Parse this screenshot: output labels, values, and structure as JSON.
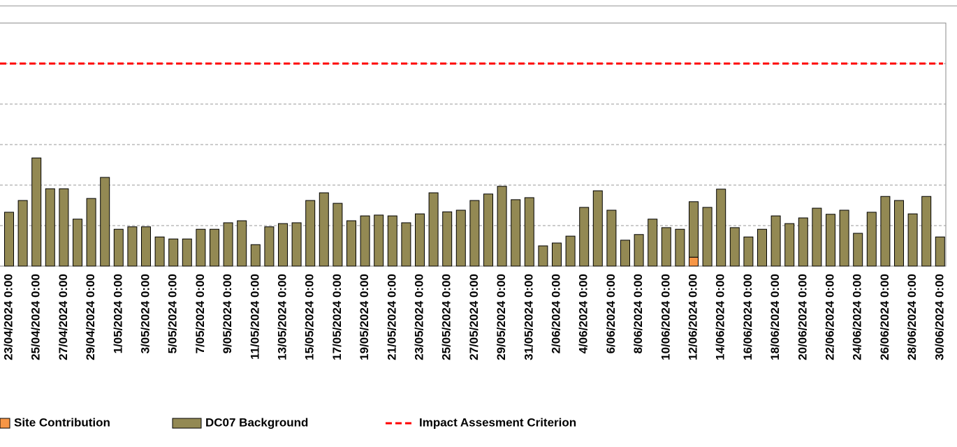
{
  "chart_data": {
    "type": "bar",
    "stacked": true,
    "categories": [
      "23/04/2024 0:00",
      null,
      "25/04/2024 0:00",
      null,
      "27/04/2024 0:00",
      null,
      "29/04/2024 0:00",
      null,
      "1/05/2024 0:00",
      null,
      "3/05/2024 0:00",
      null,
      "5/05/2024 0:00",
      null,
      "7/05/2024 0:00",
      null,
      "9/05/2024 0:00",
      null,
      "11/05/2024 0:00",
      null,
      "13/05/2024 0:00",
      null,
      "15/05/2024 0:00",
      null,
      "17/05/2024 0:00",
      null,
      "19/05/2024 0:00",
      null,
      "21/05/2024 0:00",
      null,
      "23/05/2024 0:00",
      null,
      "25/05/2024 0:00",
      null,
      "27/05/2024 0:00",
      null,
      "29/05/2024 0:00",
      null,
      "31/05/2024 0:00",
      null,
      "2/06/2024 0:00",
      null,
      "4/06/2024 0:00",
      null,
      "6/06/2024 0:00",
      null,
      "8/06/2024 0:00",
      null,
      "10/06/2024 0:00",
      null,
      "12/06/2024 0:00",
      null,
      "14/06/2024 0:00",
      null,
      "16/06/2024 0:00",
      null,
      "18/06/2024 0:00",
      null,
      "20/06/2024 0:00",
      null,
      "22/06/2024 0:00",
      null,
      "24/06/2024 0:00",
      null,
      "26/06/2024 0:00",
      null,
      "28/06/2024 0:00",
      null,
      "30/06/2024 0:00"
    ],
    "series": [
      {
        "name": "Site Contribution",
        "color": "#f79646",
        "values": [
          0,
          0,
          0,
          0,
          0,
          0,
          0,
          0,
          0,
          0,
          0,
          0,
          0,
          0,
          0,
          0,
          0,
          0,
          0,
          0,
          0,
          0,
          0,
          0,
          0,
          0,
          0,
          0,
          0,
          0,
          0,
          0,
          0,
          0,
          0,
          0,
          0,
          0,
          0,
          0,
          0,
          0,
          0,
          0,
          0,
          0,
          0,
          0,
          0,
          0,
          2.2,
          0,
          0,
          0,
          0,
          0,
          0,
          0,
          0,
          0,
          0,
          0,
          0,
          0,
          0,
          0,
          0,
          0,
          0
        ]
      },
      {
        "name": "DC07 Background",
        "color": "#938953",
        "values": [
          13.3,
          16.2,
          26.7,
          19.1,
          19.1,
          11.6,
          16.7,
          21.9,
          9.1,
          9.7,
          9.7,
          7.2,
          6.7,
          6.7,
          9.1,
          9.1,
          10.7,
          11.2,
          5.3,
          9.7,
          10.5,
          10.7,
          16.2,
          18.1,
          15.5,
          11.2,
          12.4,
          12.6,
          12.4,
          10.7,
          12.9,
          18.1,
          13.4,
          13.8,
          16.2,
          17.8,
          19.7,
          16.4,
          16.9,
          5.0,
          5.7,
          7.4,
          14.5,
          18.6,
          13.8,
          6.4,
          7.8,
          11.6,
          9.5,
          9.1,
          13.7,
          14.5,
          19.0,
          9.5,
          7.2,
          9.1,
          12.4,
          10.5,
          11.9,
          14.3,
          12.8,
          13.8,
          8.1,
          13.3,
          17.2,
          16.2,
          12.9,
          17.2,
          7.2
        ]
      }
    ],
    "criterion": {
      "name": "Impact Assesment Criterion",
      "value": 50,
      "color": "#ff0000"
    },
    "ylim": [
      0,
      60
    ],
    "yticks": [
      0,
      10,
      20,
      30,
      40,
      50,
      60
    ],
    "grid": true
  }
}
